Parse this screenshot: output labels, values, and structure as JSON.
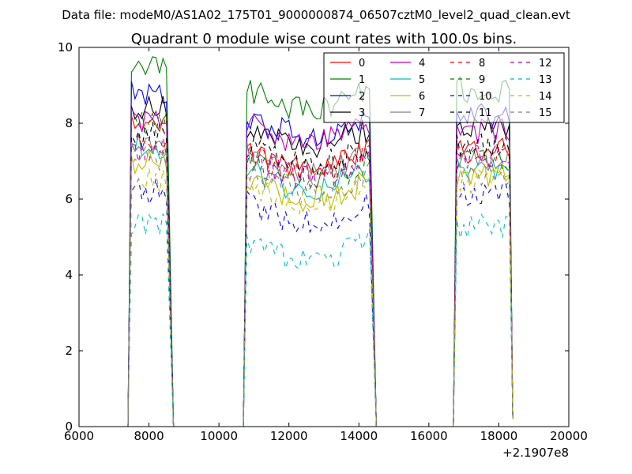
{
  "suptitle": "Data file: modeM0/AS1A02_175T01_9000000874_06507cztM0_level2_quad_clean.evt",
  "chart_data": {
    "type": "line",
    "title": "Quadrant 0 module wise count rates with 100.0s bins.",
    "xlabel": "",
    "ylabel": "",
    "x_offset_label": "+2.1907e8",
    "xlim": [
      6000,
      20000
    ],
    "ylim": [
      0,
      10
    ],
    "xticks": [
      "6000",
      "8000",
      "10000",
      "12000",
      "14000",
      "16000",
      "18000",
      "20000"
    ],
    "yticks": [
      "0",
      "2",
      "4",
      "6",
      "8",
      "10"
    ],
    "grid": false,
    "legend": {
      "placement": "top-right",
      "columns": 4
    },
    "segments": [
      [
        7500,
        8500
      ],
      [
        10800,
        14300
      ],
      [
        16800,
        18300
      ]
    ],
    "zero_x": [
      8700,
      9000,
      9500,
      10000,
      10500,
      14500,
      15000,
      15500,
      16000,
      16500
    ],
    "last_x": 18400,
    "series": [
      {
        "name": "0",
        "color": "#ff0000",
        "dash": false,
        "level": [
          7.9,
          7.3,
          7.3
        ]
      },
      {
        "name": "1",
        "color": "#008000",
        "dash": false,
        "level": [
          9.5,
          8.9,
          8.9
        ]
      },
      {
        "name": "2",
        "color": "#0000ff",
        "dash": false,
        "level": [
          8.8,
          8.2,
          8.2
        ]
      },
      {
        "name": "3",
        "color": "#000000",
        "dash": false,
        "level": [
          8.4,
          7.9,
          7.9
        ]
      },
      {
        "name": "4",
        "color": "#bf00bf",
        "dash": false,
        "level": [
          8.1,
          8.0,
          7.8
        ]
      },
      {
        "name": "5",
        "color": "#00bfbf",
        "dash": false,
        "level": [
          7.4,
          6.8,
          6.8
        ]
      },
      {
        "name": "6",
        "color": "#bfbf00",
        "dash": false,
        "level": [
          7.0,
          6.5,
          6.6
        ]
      },
      {
        "name": "7",
        "color": "#808080",
        "dash": false,
        "level": [
          7.6,
          7.2,
          7.1
        ]
      },
      {
        "name": "8",
        "color": "#ff0000",
        "dash": true,
        "level": [
          7.5,
          7.2,
          7.2
        ]
      },
      {
        "name": "9",
        "color": "#008000",
        "dash": true,
        "level": [
          8.0,
          7.0,
          7.0
        ]
      },
      {
        "name": "10",
        "color": "#0000ff",
        "dash": true,
        "level": [
          6.2,
          5.9,
          6.1
        ]
      },
      {
        "name": "11",
        "color": "#000000",
        "dash": true,
        "level": [
          7.7,
          7.4,
          7.4
        ]
      },
      {
        "name": "12",
        "color": "#bf00bf",
        "dash": true,
        "level": [
          7.3,
          7.1,
          7.1
        ]
      },
      {
        "name": "13",
        "color": "#00bfbf",
        "dash": true,
        "level": [
          5.4,
          4.9,
          5.3
        ]
      },
      {
        "name": "14",
        "color": "#bfbf00",
        "dash": true,
        "level": [
          6.5,
          6.4,
          6.5
        ]
      },
      {
        "name": "15",
        "color": "#808080",
        "dash": true,
        "level": [
          7.1,
          6.7,
          6.7
        ]
      }
    ]
  }
}
